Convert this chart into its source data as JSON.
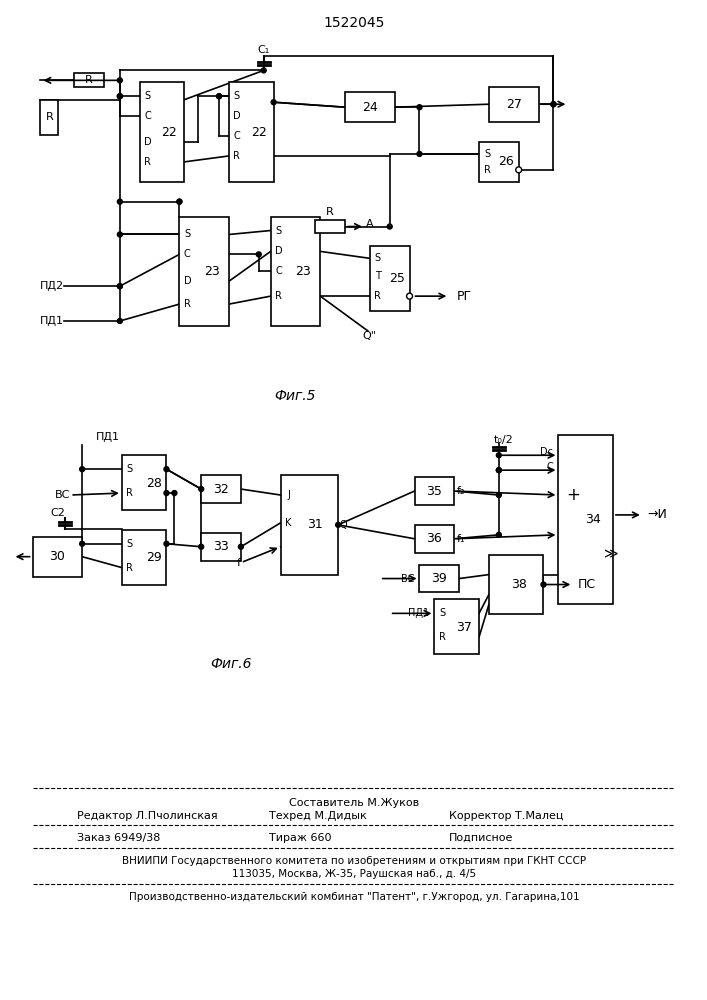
{
  "title": "1522045",
  "fig5_label": "Фиг.5",
  "fig6_label": "Фиг.6",
  "bg": "#ffffff"
}
